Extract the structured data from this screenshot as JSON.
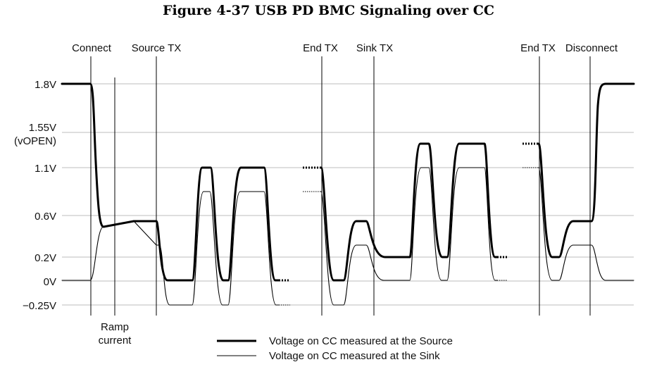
{
  "figure": {
    "title": "Figure 4-37  USB PD BMC Signaling over CC"
  },
  "y_axis": {
    "labels": [
      {
        "id": "v18",
        "lines": [
          "1.8V"
        ]
      },
      {
        "id": "v155",
        "lines": [
          "1.55V",
          "(vOPEN)"
        ]
      },
      {
        "id": "v11",
        "lines": [
          "1.1V"
        ]
      },
      {
        "id": "v06",
        "lines": [
          "0.6V"
        ]
      },
      {
        "id": "v02",
        "lines": [
          "0.2V"
        ]
      },
      {
        "id": "v0",
        "lines": [
          "0V"
        ]
      },
      {
        "id": "vneg025",
        "lines": [
          "−0.25V"
        ]
      }
    ]
  },
  "markers": {
    "connect": "Connect",
    "source_tx": "Source TX",
    "end_tx_1": "End TX",
    "sink_tx": "Sink TX",
    "end_tx_2": "End TX",
    "disconnect": "Disconnect",
    "ramp_line1": "Ramp",
    "ramp_line2": "current"
  },
  "legend": {
    "source": "Voltage on CC measured at the Source",
    "sink": "Voltage on CC measured at the Sink"
  }
}
